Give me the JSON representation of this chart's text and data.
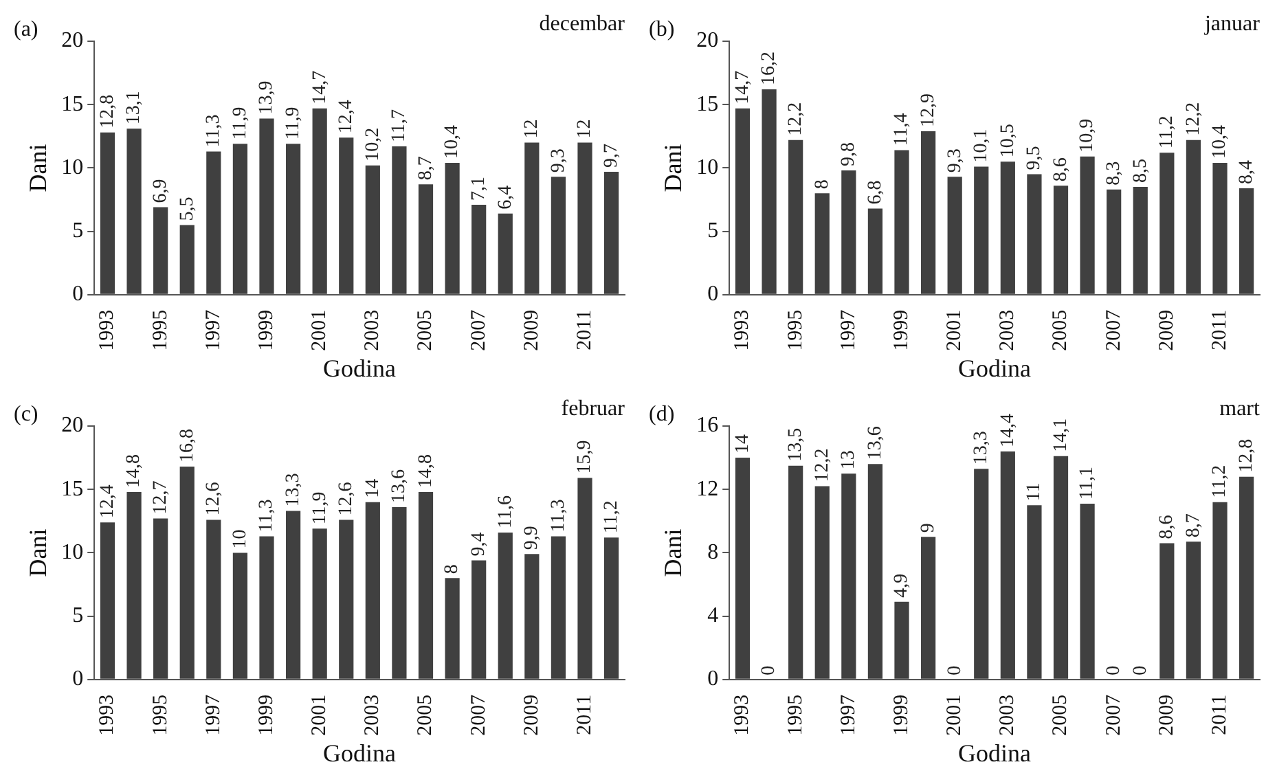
{
  "chart_data": [
    {
      "type": "bar",
      "title": "decembar",
      "annotations": [
        "(a)"
      ],
      "xlabel": "Godina",
      "ylabel": "Dani",
      "categories": [
        "1993",
        null,
        "1995",
        null,
        "1997",
        null,
        "1999",
        null,
        "2001",
        null,
        "2003",
        null,
        "2005",
        null,
        "2007",
        null,
        "2009",
        null,
        "2011",
        null
      ],
      "values": [
        12.8,
        13.1,
        6.9,
        5.5,
        11.3,
        11.9,
        13.9,
        11.9,
        14.7,
        12.4,
        10.2,
        11.7,
        8.7,
        10.4,
        7.1,
        6.4,
        12,
        9.3,
        12,
        9.7
      ],
      "value_labels": [
        "12,8",
        "13,1",
        "6,9",
        "5,5",
        "11,3",
        "11,9",
        "13,9",
        "11,9",
        "14,7",
        "12,4",
        "10,2",
        "11,7",
        "8,7",
        "10,4",
        "7,1",
        "6,4",
        "12",
        "9,3",
        "12",
        "9,7"
      ],
      "color": "#404040",
      "ylim": [
        0,
        20
      ],
      "yticks": [
        0,
        5,
        10,
        15,
        20
      ],
      "grid": false,
      "legend": false
    },
    {
      "type": "bar",
      "title": "januar",
      "annotations": [
        "(b)"
      ],
      "xlabel": "Godina",
      "ylabel": "Dani",
      "categories": [
        "1993",
        null,
        "1995",
        null,
        "1997",
        null,
        "1999",
        null,
        "2001",
        null,
        "2003",
        null,
        "2005",
        null,
        "2007",
        null,
        "2009",
        null,
        "2011",
        null
      ],
      "values": [
        14.7,
        16.2,
        12.2,
        8,
        9.8,
        6.8,
        11.4,
        12.9,
        9.3,
        10.1,
        10.5,
        9.5,
        8.6,
        10.9,
        8.3,
        8.5,
        11.2,
        12.2,
        10.4,
        8.4
      ],
      "value_labels": [
        "14,7",
        "16,2",
        "12,2",
        "8",
        "9,8",
        "6,8",
        "11,4",
        "12,9",
        "9,3",
        "10,1",
        "10,5",
        "9,5",
        "8,6",
        "10,9",
        "8,3",
        "8,5",
        "11,2",
        "12,2",
        "10,4",
        "8,4"
      ],
      "color": "#404040",
      "ylim": [
        0,
        20
      ],
      "yticks": [
        0,
        5,
        10,
        15,
        20
      ],
      "grid": false,
      "legend": false
    },
    {
      "type": "bar",
      "title": "februar",
      "annotations": [
        "(c)"
      ],
      "xlabel": "Godina",
      "ylabel": "Dani",
      "categories": [
        "1993",
        null,
        "1995",
        null,
        "1997",
        null,
        "1999",
        null,
        "2001",
        null,
        "2003",
        null,
        "2005",
        null,
        "2007",
        null,
        "2009",
        null,
        "2011",
        null
      ],
      "values": [
        12.4,
        14.8,
        12.7,
        16.8,
        12.6,
        10,
        11.3,
        13.3,
        11.9,
        12.6,
        14,
        13.6,
        14.8,
        8,
        9.4,
        11.6,
        9.9,
        11.3,
        15.9,
        11.2
      ],
      "value_labels": [
        "12,4",
        "14,8",
        "12,7",
        "16,8",
        "12,6",
        "10",
        "11,3",
        "13,3",
        "11,9",
        "12,6",
        "14",
        "13,6",
        "14,8",
        "8",
        "9,4",
        "11,6",
        "9,9",
        "11,3",
        "15,9",
        "11,2"
      ],
      "color": "#404040",
      "ylim": [
        0,
        20
      ],
      "yticks": [
        0,
        5,
        10,
        15,
        20
      ],
      "grid": false,
      "legend": false
    },
    {
      "type": "bar",
      "title": "mart",
      "annotations": [
        "(d)"
      ],
      "xlabel": "Godina",
      "ylabel": "Dani",
      "categories": [
        "1993",
        null,
        "1995",
        null,
        "1997",
        null,
        "1999",
        null,
        "2001",
        null,
        "2003",
        null,
        "2005",
        null,
        "2007",
        null,
        "2009",
        null,
        "2011",
        null
      ],
      "values": [
        14,
        0,
        13.5,
        12.2,
        13,
        13.6,
        4.9,
        9,
        0,
        13.3,
        14.4,
        11,
        14.1,
        11.1,
        0,
        0,
        8.6,
        8.7,
        11.2,
        12.8
      ],
      "value_labels": [
        "14",
        "0",
        "13,5",
        "12,2",
        "13",
        "13,6",
        "4,9",
        "9",
        "0",
        "13,3",
        "14,4",
        "11",
        "14,1",
        "11,1",
        "0",
        "0",
        "8,6",
        "8,7",
        "11,2",
        "12,8"
      ],
      "color": "#404040",
      "ylim": [
        0,
        16
      ],
      "yticks": [
        0,
        4,
        8,
        12,
        16
      ],
      "grid": false,
      "legend": false
    }
  ]
}
